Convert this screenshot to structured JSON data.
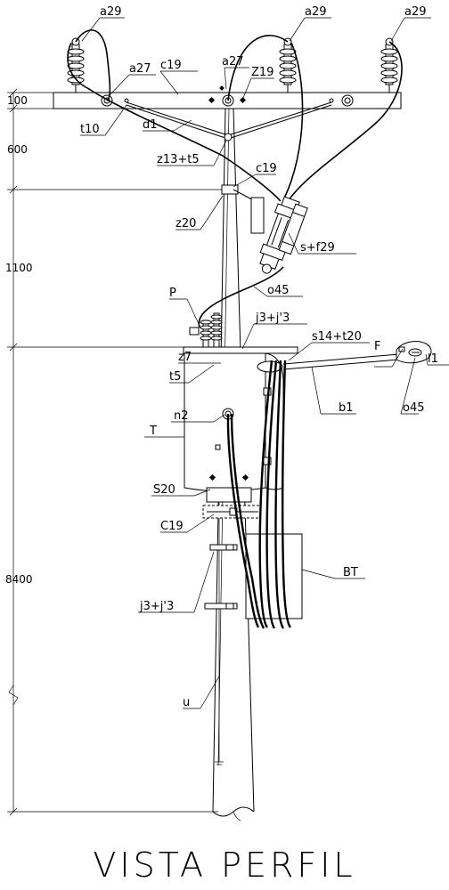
{
  "title": "VISTA PERFIL",
  "dimensions": {
    "d100": "100",
    "d600": "600",
    "d1100": "1100",
    "d8400": "8400"
  },
  "labels": {
    "a29_left": "a29",
    "a29_mid": "a29",
    "a29_right": "a29",
    "a27_left": "a27",
    "a27_mid": "a27",
    "c19_top": "c19",
    "z19": "Z19",
    "t10": "t10",
    "d1": "d1",
    "z13t5": "z13+t5",
    "c19_pole": "c19",
    "z20": "z20",
    "sf29": "s+f29",
    "o45_top": "o45",
    "p": "P",
    "j3j3_top": "j3+j'3",
    "s14t20": "s14+t20",
    "f": "F",
    "l1": "l1",
    "z7": "z7",
    "t5": "t5",
    "b1": "b1",
    "o45_lamp": "o45",
    "n2": "n2",
    "t": "T",
    "s20": "S20",
    "c19_low": "C19",
    "bt": "BT",
    "j3j3_low": "j3+j'3",
    "u": "u"
  }
}
